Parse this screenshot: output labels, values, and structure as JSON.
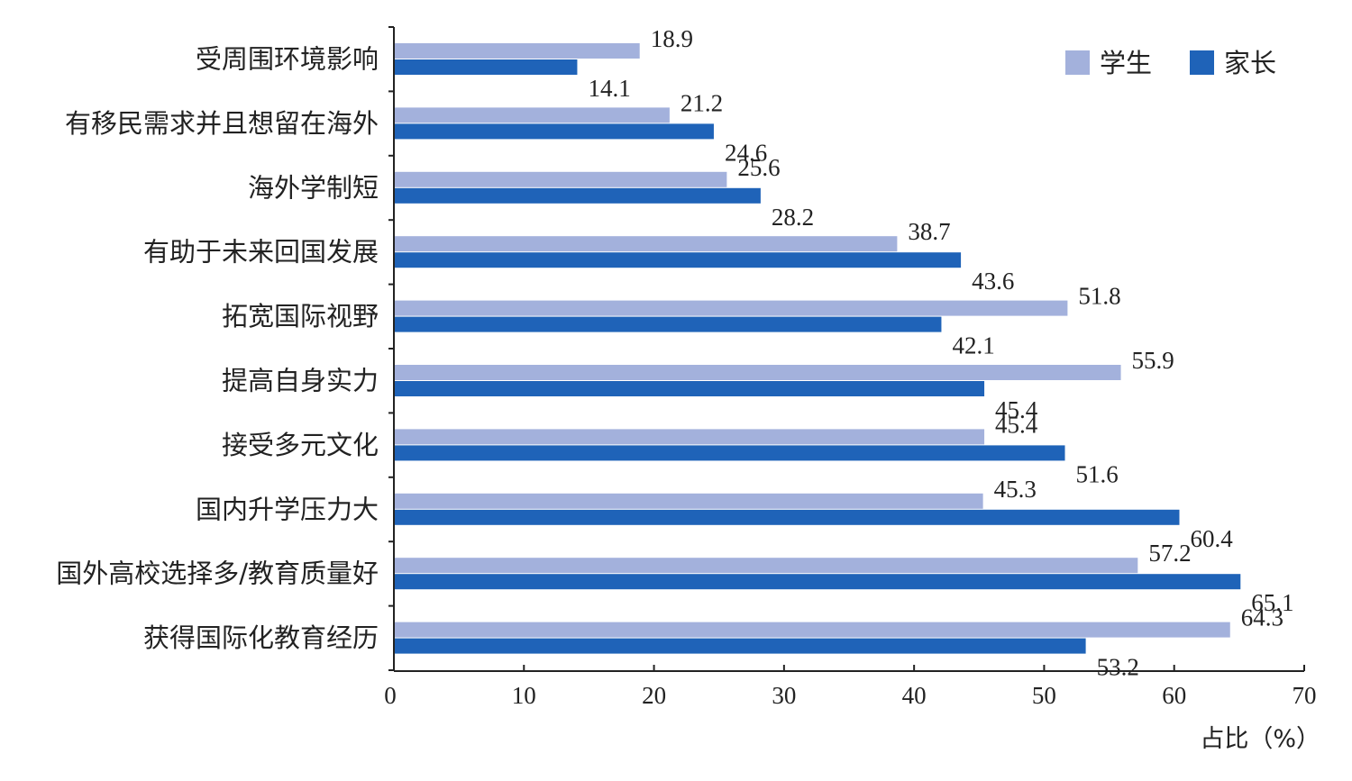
{
  "chart_data": {
    "type": "bar",
    "orientation": "horizontal",
    "categories": [
      "受周围环境影响",
      "有移民需求并且想留在海外",
      "海外学制短",
      "有助于未来回国发展",
      "拓宽国际视野",
      "提高自身实力",
      "接受多元文化",
      "国内升学压力大",
      "国外高校选择多/教育质量好",
      "获得国际化教育经历"
    ],
    "series": [
      {
        "name": "学生",
        "color": "#a3b1dc",
        "values": [
          18.9,
          21.2,
          25.6,
          38.7,
          51.8,
          55.9,
          45.4,
          45.3,
          57.2,
          64.3
        ]
      },
      {
        "name": "家长",
        "color": "#1f63b8",
        "values": [
          14.1,
          24.6,
          28.2,
          43.6,
          42.1,
          45.4,
          51.6,
          60.4,
          65.1,
          53.2
        ]
      }
    ],
    "xlabel": "占比（%）",
    "xlim": [
      0,
      70
    ],
    "xticks": [
      0,
      10,
      20,
      30,
      40,
      50,
      60,
      70
    ],
    "legend_position": "top-right",
    "grid": false
  }
}
